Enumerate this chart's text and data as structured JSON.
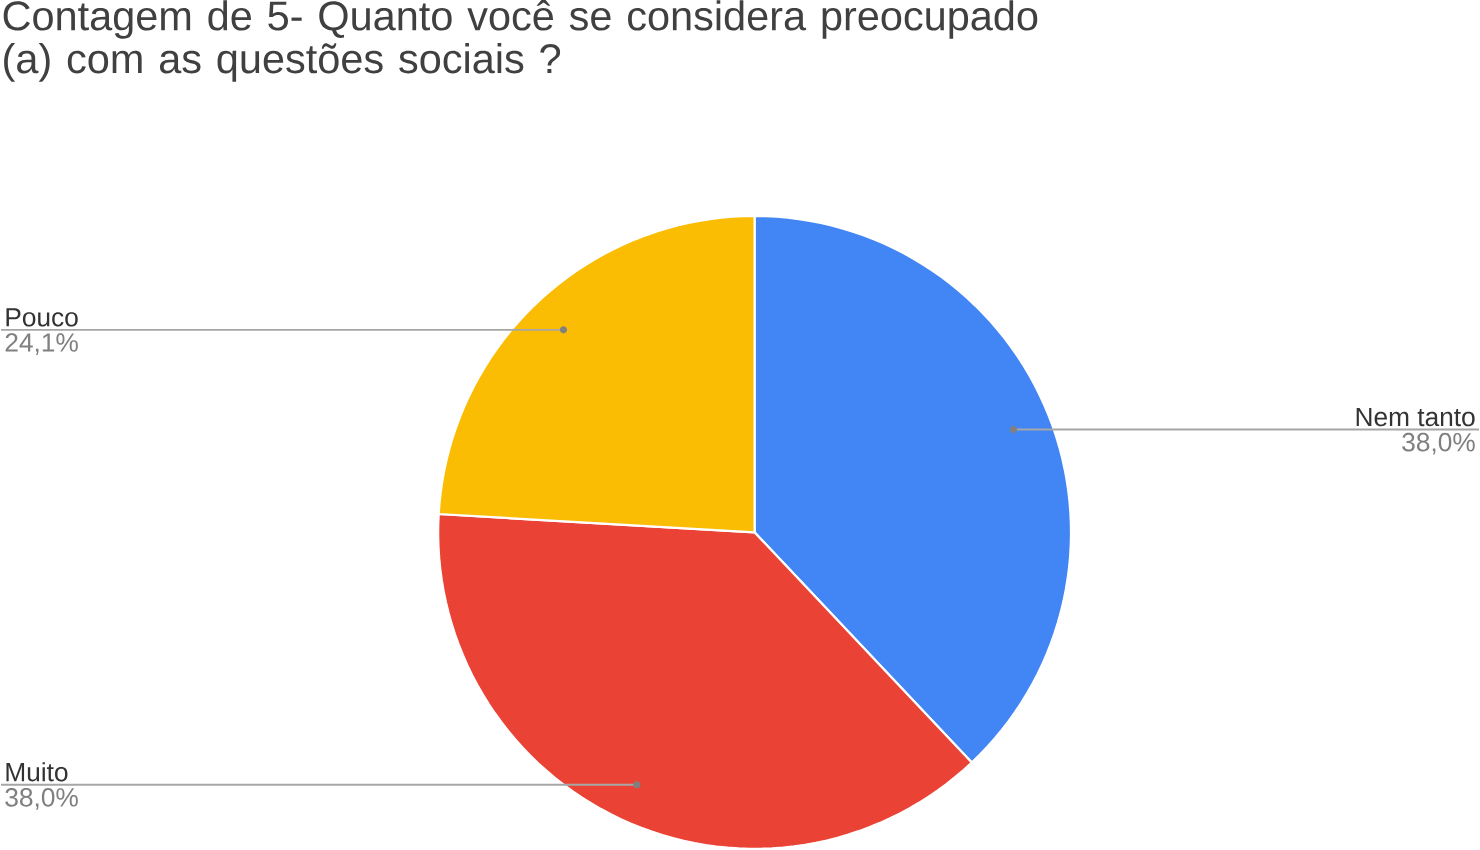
{
  "chart_data": {
    "type": "pie",
    "title": "Contagem de 5- Quanto você se considera preocupado (a) com as questões sociais ?",
    "categories": [
      "Nem tanto",
      "Muito",
      "Pouco"
    ],
    "values": [
      38.0,
      38.0,
      24.1
    ],
    "colors": [
      "#4285f4",
      "#ea4335",
      "#fbbc04"
    ],
    "value_labels": [
      "38,0%",
      "38,0%",
      "24,1%"
    ]
  }
}
